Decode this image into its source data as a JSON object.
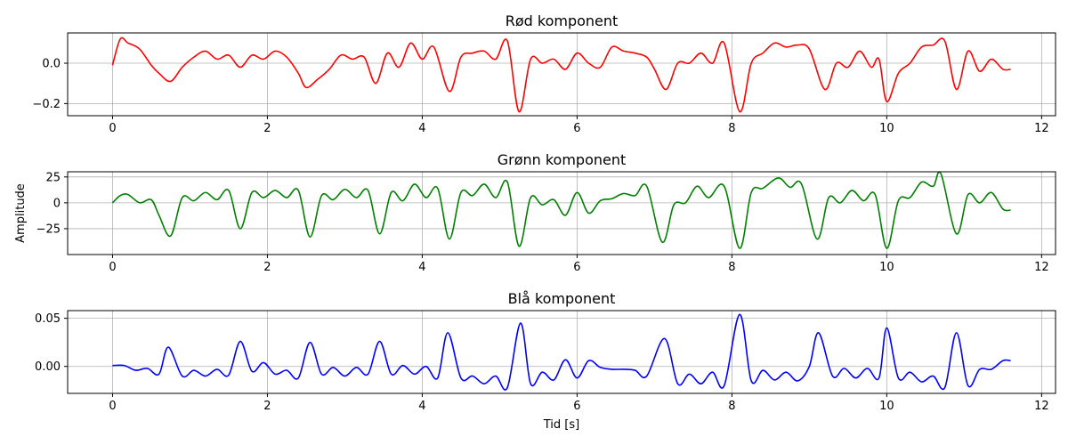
{
  "chart_data": [
    {
      "type": "line",
      "title": "Rød komponent",
      "xlabel": "",
      "ylabel": "",
      "xlim": [
        -0.58,
        12.18
      ],
      "ylim": [
        -0.26,
        0.15
      ],
      "xticks": [
        0,
        2,
        4,
        6,
        8,
        10,
        12
      ],
      "xtick_labels": [
        "0",
        "2",
        "4",
        "6",
        "8",
        "10",
        "12"
      ],
      "yticks": [
        0.0,
        -0.2
      ],
      "ytick_labels": [
        "0.0",
        "−0.2"
      ],
      "grid": true,
      "color": "#ff0000",
      "series": [
        {
          "x": [
            0,
            0.1,
            0.2,
            0.35,
            0.5,
            0.6,
            0.75,
            0.9,
            1.05,
            1.2,
            1.35,
            1.5,
            1.65,
            1.8,
            1.95,
            2.1,
            2.25,
            2.4,
            2.5,
            2.65,
            2.8,
            2.95,
            3.1,
            3.25,
            3.4,
            3.55,
            3.7,
            3.85,
            4.0,
            4.15,
            4.35,
            4.5,
            4.65,
            4.8,
            4.95,
            5.1,
            5.25,
            5.4,
            5.55,
            5.7,
            5.85,
            6.0,
            6.15,
            6.3,
            6.45,
            6.6,
            6.75,
            6.9,
            7.0,
            7.15,
            7.3,
            7.45,
            7.6,
            7.75,
            7.9,
            8.1,
            8.25,
            8.4,
            8.55,
            8.7,
            8.85,
            9.0,
            9.2,
            9.35,
            9.5,
            9.65,
            9.8,
            9.9,
            10.0,
            10.15,
            10.3,
            10.45,
            10.6,
            10.75,
            10.9,
            11.05,
            11.2,
            11.35,
            11.5,
            11.6
          ],
          "y": [
            -0.01,
            0.12,
            0.1,
            0.07,
            -0.01,
            -0.05,
            -0.09,
            -0.02,
            0.03,
            0.06,
            0.02,
            0.04,
            -0.02,
            0.04,
            0.02,
            0.06,
            0.03,
            -0.05,
            -0.12,
            -0.08,
            -0.03,
            0.04,
            0.02,
            0.03,
            -0.1,
            0.05,
            -0.02,
            0.1,
            0.02,
            0.08,
            -0.14,
            0.03,
            0.05,
            0.06,
            0.02,
            0.11,
            -0.24,
            0.02,
            0.0,
            0.02,
            -0.03,
            0.05,
            0.0,
            -0.02,
            0.08,
            0.06,
            0.05,
            0.03,
            -0.03,
            -0.13,
            0.0,
            0.0,
            0.05,
            0.0,
            0.1,
            -0.24,
            0.0,
            0.05,
            0.1,
            0.08,
            0.09,
            0.07,
            -0.13,
            0.0,
            -0.02,
            0.06,
            -0.02,
            0.02,
            -0.19,
            -0.05,
            0.0,
            0.08,
            0.09,
            0.11,
            -0.13,
            0.06,
            -0.04,
            0.02,
            -0.03,
            -0.03
          ]
        }
      ]
    },
    {
      "type": "line",
      "title": "Grønn komponent",
      "xlabel": "",
      "ylabel": "Amplitude",
      "xlim": [
        -0.58,
        12.18
      ],
      "ylim": [
        -50,
        30
      ],
      "xticks": [
        0,
        2,
        4,
        6,
        8,
        10,
        12
      ],
      "xtick_labels": [
        "0",
        "2",
        "4",
        "6",
        "8",
        "10",
        "12"
      ],
      "yticks": [
        25,
        0,
        -25
      ],
      "ytick_labels": [
        "25",
        "0",
        "−25"
      ],
      "grid": true,
      "color": "#008000",
      "series": [
        {
          "x": [
            0,
            0.1,
            0.2,
            0.35,
            0.5,
            0.6,
            0.75,
            0.9,
            1.05,
            1.2,
            1.35,
            1.5,
            1.65,
            1.8,
            1.95,
            2.1,
            2.25,
            2.4,
            2.55,
            2.7,
            2.85,
            3.0,
            3.15,
            3.3,
            3.45,
            3.6,
            3.75,
            3.9,
            4.05,
            4.2,
            4.35,
            4.5,
            4.65,
            4.8,
            4.95,
            5.1,
            5.25,
            5.4,
            5.55,
            5.7,
            5.85,
            6.0,
            6.15,
            6.3,
            6.45,
            6.6,
            6.75,
            6.9,
            7.1,
            7.25,
            7.4,
            7.55,
            7.7,
            7.9,
            8.1,
            8.25,
            8.4,
            8.6,
            8.75,
            8.9,
            9.1,
            9.25,
            9.4,
            9.55,
            9.7,
            9.85,
            10.0,
            10.15,
            10.3,
            10.45,
            10.6,
            10.7,
            10.9,
            11.05,
            11.2,
            11.35,
            11.5,
            11.6
          ],
          "y": [
            0,
            7,
            8,
            0,
            3,
            -12,
            -32,
            5,
            2,
            10,
            3,
            12,
            -25,
            10,
            5,
            12,
            5,
            12,
            -33,
            7,
            3,
            13,
            5,
            12,
            -30,
            10,
            2,
            18,
            5,
            14,
            -35,
            10,
            7,
            18,
            5,
            20,
            -42,
            5,
            -2,
            3,
            -12,
            10,
            -10,
            2,
            4,
            9,
            7,
            16,
            -38,
            -2,
            0,
            16,
            5,
            16,
            -44,
            10,
            14,
            24,
            15,
            18,
            -35,
            5,
            0,
            12,
            2,
            8,
            -44,
            2,
            5,
            20,
            16,
            28,
            -30,
            8,
            0,
            10,
            -6,
            -7
          ]
        }
      ]
    },
    {
      "type": "line",
      "title": "Blå komponent",
      "xlabel": "Tid [s]",
      "ylabel": "",
      "xlim": [
        -0.58,
        12.18
      ],
      "ylim": [
        -0.028,
        0.058
      ],
      "xticks": [
        0,
        2,
        4,
        6,
        8,
        10,
        12
      ],
      "xtick_labels": [
        "0",
        "2",
        "4",
        "6",
        "8",
        "10",
        "12"
      ],
      "yticks": [
        0.05,
        0.0
      ],
      "ytick_labels": [
        "0.05",
        "0.00"
      ],
      "grid": true,
      "color": "#0000ff",
      "series": [
        {
          "x": [
            0,
            0.15,
            0.3,
            0.45,
            0.6,
            0.72,
            0.9,
            1.05,
            1.2,
            1.35,
            1.5,
            1.65,
            1.8,
            1.95,
            2.1,
            2.25,
            2.4,
            2.55,
            2.7,
            2.85,
            3.0,
            3.15,
            3.3,
            3.45,
            3.6,
            3.75,
            3.9,
            4.05,
            4.2,
            4.33,
            4.5,
            4.65,
            4.8,
            4.95,
            5.1,
            5.27,
            5.4,
            5.55,
            5.7,
            5.85,
            6.0,
            6.15,
            6.3,
            6.45,
            6.6,
            6.75,
            6.9,
            7.13,
            7.3,
            7.45,
            7.6,
            7.75,
            7.9,
            8.1,
            8.25,
            8.4,
            8.55,
            8.7,
            8.85,
            9.0,
            9.12,
            9.3,
            9.45,
            9.6,
            9.75,
            9.9,
            10.0,
            10.15,
            10.3,
            10.45,
            10.6,
            10.75,
            10.9,
            11.05,
            11.2,
            11.35,
            11.5,
            11.6
          ],
          "y": [
            0.001,
            0.001,
            -0.004,
            -0.002,
            -0.008,
            0.02,
            -0.01,
            -0.004,
            -0.01,
            -0.003,
            -0.009,
            0.026,
            -0.005,
            0.004,
            -0.008,
            -0.004,
            -0.012,
            0.025,
            -0.008,
            -0.001,
            -0.01,
            -0.001,
            -0.008,
            0.026,
            -0.008,
            0.001,
            -0.008,
            0.0,
            -0.012,
            0.035,
            -0.012,
            -0.01,
            -0.018,
            -0.01,
            -0.022,
            0.045,
            -0.018,
            -0.006,
            -0.014,
            0.007,
            -0.012,
            0.006,
            -0.001,
            -0.003,
            -0.003,
            -0.004,
            -0.01,
            0.029,
            -0.018,
            -0.008,
            -0.018,
            -0.006,
            -0.02,
            0.054,
            -0.015,
            -0.004,
            -0.014,
            -0.006,
            -0.015,
            0.0,
            0.035,
            -0.01,
            -0.002,
            -0.012,
            -0.002,
            -0.012,
            0.04,
            -0.012,
            -0.006,
            -0.016,
            -0.01,
            -0.022,
            0.035,
            -0.02,
            -0.003,
            -0.003,
            0.006,
            0.006
          ]
        }
      ]
    }
  ]
}
